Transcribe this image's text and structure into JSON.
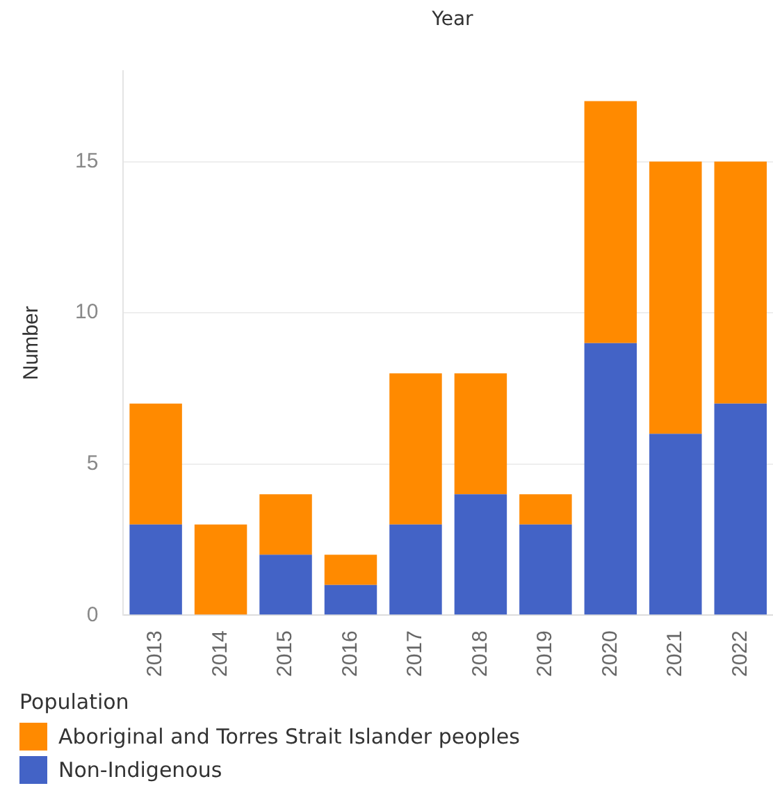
{
  "chart_data": {
    "type": "bar",
    "title": "Year",
    "ylabel": "Number",
    "legend_title": "Population",
    "stacked": true,
    "categories": [
      "2013",
      "2014",
      "2015",
      "2016",
      "2017",
      "2018",
      "2019",
      "2020",
      "2021",
      "2022"
    ],
    "series": [
      {
        "name": "Non-Indigenous",
        "color": "#4363c6",
        "values": [
          3,
          0,
          2,
          1,
          3,
          4,
          3,
          9,
          6,
          7
        ]
      },
      {
        "name": "Aboriginal and Torres Strait Islander peoples",
        "color": "#ff8a00",
        "values": [
          4,
          3,
          2,
          1,
          5,
          4,
          1,
          8,
          9,
          8
        ]
      }
    ],
    "ylim": [
      0,
      18
    ],
    "yticks": [
      0,
      5,
      10,
      15
    ],
    "grid": "y",
    "legend": "bottom"
  }
}
